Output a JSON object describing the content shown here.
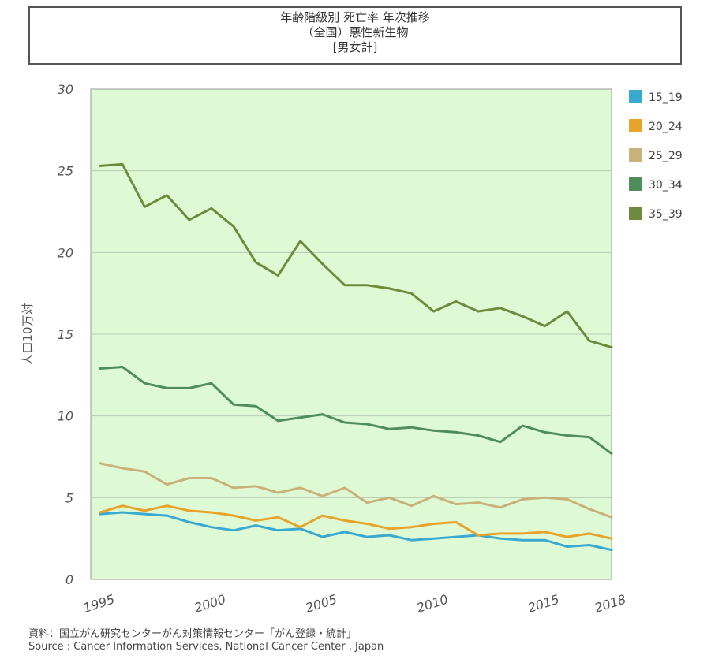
{
  "title_lines": [
    "年齢階級別 死亡率 年次推移",
    "（全国）悪性新生物",
    "[男女計]"
  ],
  "source_lines": [
    "資料：国立がん研究センターがん対策情報センター「がん登録・統計」",
    "Source : Cancer Information Services, National Cancer Center , Japan"
  ],
  "chart_data": {
    "type": "line",
    "title": "年齢階級別 死亡率 年次推移 （全国）悪性新生物 [男女計]",
    "xlabel": "",
    "ylabel": "人口10万対",
    "ylim": [
      0,
      30
    ],
    "xlim": [
      1995,
      2018
    ],
    "yticks": [
      0,
      5,
      10,
      15,
      20,
      25,
      30
    ],
    "xticks": [
      1995,
      2000,
      2005,
      2010,
      2015,
      2018
    ],
    "grid": "horizontal",
    "legend_position": "right",
    "x": [
      1995,
      1996,
      1997,
      1998,
      1999,
      2000,
      2001,
      2002,
      2003,
      2004,
      2005,
      2006,
      2007,
      2008,
      2009,
      2010,
      2011,
      2012,
      2013,
      2014,
      2015,
      2016,
      2017,
      2018
    ],
    "series": [
      {
        "name": "15_19",
        "color": "#3AA9D0",
        "values": [
          4.0,
          4.1,
          4.0,
          3.9,
          3.5,
          3.2,
          3.0,
          3.3,
          3.0,
          3.1,
          2.6,
          2.9,
          2.6,
          2.7,
          2.4,
          2.5,
          2.6,
          2.7,
          2.5,
          2.4,
          2.4,
          2.0,
          2.1,
          1.8
        ]
      },
      {
        "name": "20_24",
        "color": "#E8A32A",
        "values": [
          4.1,
          4.5,
          4.2,
          4.5,
          4.2,
          4.1,
          3.9,
          3.6,
          3.8,
          3.2,
          3.9,
          3.6,
          3.4,
          3.1,
          3.2,
          3.4,
          3.5,
          2.7,
          2.8,
          2.8,
          2.9,
          2.6,
          2.8,
          2.5
        ]
      },
      {
        "name": "25_29",
        "color": "#C9B27A",
        "values": [
          7.1,
          6.8,
          6.6,
          5.8,
          6.2,
          6.2,
          5.6,
          5.7,
          5.3,
          5.6,
          5.1,
          5.6,
          4.7,
          5.0,
          4.5,
          5.1,
          4.6,
          4.7,
          4.4,
          4.9,
          5.0,
          4.9,
          4.3,
          3.8
        ]
      },
      {
        "name": "30_34",
        "color": "#4F8D5A",
        "values": [
          12.9,
          13.0,
          12.0,
          11.7,
          11.7,
          12.0,
          10.7,
          10.6,
          9.7,
          9.9,
          10.1,
          9.6,
          9.5,
          9.2,
          9.3,
          9.1,
          9.0,
          8.8,
          8.4,
          9.4,
          9.0,
          8.8,
          8.7,
          7.7
        ]
      },
      {
        "name": "35_39",
        "color": "#6E8B3D",
        "values": [
          25.3,
          25.4,
          22.8,
          23.5,
          22.0,
          22.7,
          21.6,
          19.4,
          18.6,
          20.7,
          19.3,
          18.0,
          18.0,
          17.8,
          17.5,
          16.4,
          17.0,
          16.4,
          16.6,
          16.1,
          15.5,
          16.4,
          14.6,
          14.2
        ]
      }
    ]
  }
}
